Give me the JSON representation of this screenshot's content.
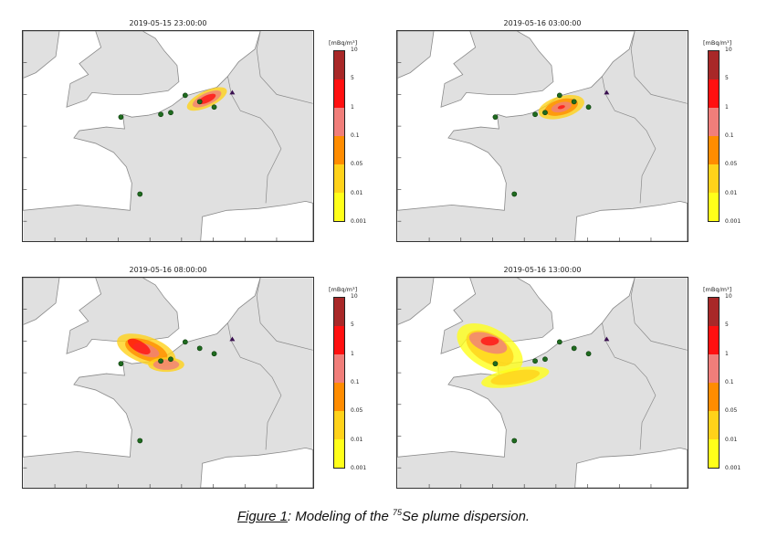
{
  "panels": [
    {
      "title": "2019-05-15 23:00:00"
    },
    {
      "title": "2019-05-16 03:00:00"
    },
    {
      "title": "2019-05-16 08:00:00"
    },
    {
      "title": "2019-05-16 13:00:00"
    }
  ],
  "colorbar": {
    "unit": "[mBq/m³]",
    "labels": [
      "10",
      "5",
      "1",
      "0.1",
      "0.05",
      "0.01",
      "0.001"
    ],
    "colors": [
      "#ffff1a",
      "#ffd21a",
      "#ff8c00",
      "#f07e7a",
      "#ff1010",
      "#a82828"
    ]
  },
  "map_colors": {
    "land": "#e0e0e0",
    "sea": "#ffffff",
    "coast": "#8a8a8a",
    "station": "#1f6b1f",
    "source": "#3a1050"
  },
  "caption": {
    "figure_label": "Figure 1",
    "prefix": ": Modeling of the ",
    "isotope_mass": "75",
    "suffix": "Se plume dispersion."
  }
}
